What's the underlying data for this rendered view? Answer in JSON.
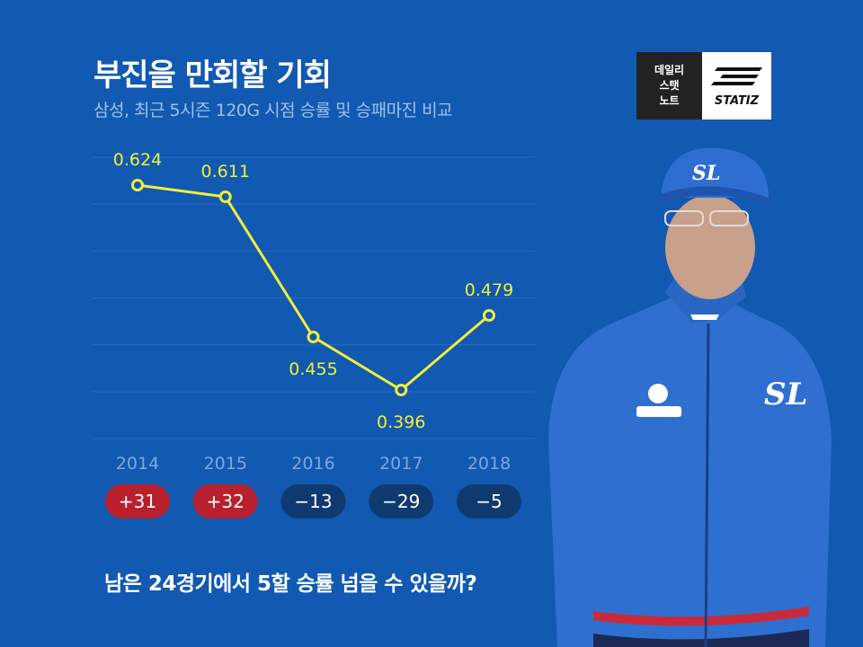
{
  "header": {
    "title": "부진을 만회할 기회",
    "subtitle": "삼성, 최근 5시즌 120G 시점 승률 및 승패마진 비교"
  },
  "logo": {
    "line1": "데일리",
    "line2": "스탯",
    "line3": "노트",
    "brand": "STATIZ"
  },
  "footer": {
    "text": "남은 24경기에서 5할 승률 넘을 수 있을까?"
  },
  "colors": {
    "background": "#1159b1",
    "line": "#f3ef3a",
    "positive_badge": "#b8202e",
    "negative_badge": "#0f3a70"
  },
  "chart_data": {
    "type": "line",
    "title": "부진을 만회할 기회",
    "subtitle": "삼성, 최근 5시즌 120G 시점 승률 및 승패마진 비교",
    "categories": [
      "2014",
      "2015",
      "2016",
      "2017",
      "2018"
    ],
    "series": [
      {
        "values": [
          0.624,
          0.611,
          0.455,
          0.396,
          0.479
        ]
      }
    ],
    "data_labels": [
      "0.624",
      "0.611",
      "0.455",
      "0.396",
      "0.479"
    ],
    "margins": [
      "+31",
      "+32",
      "−13",
      "−29",
      "−5"
    ],
    "margin_values": [
      31,
      32,
      -13,
      -29,
      -5
    ],
    "ylim": [
      0.33,
      0.66
    ],
    "grid": true,
    "legend": "none"
  }
}
